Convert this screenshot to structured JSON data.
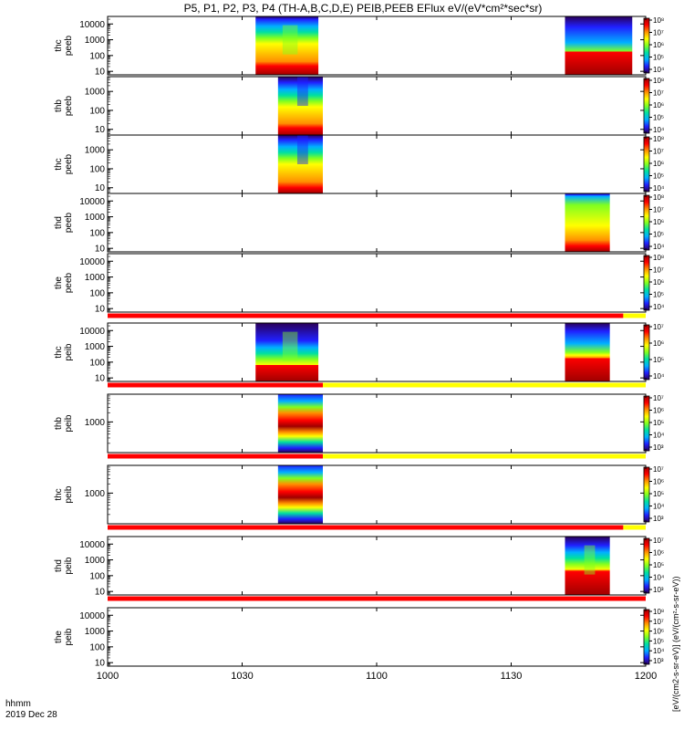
{
  "chart_data": {
    "type": "heatmap",
    "title": "P5, P1, P2, P3, P4 (TH-A,B,C,D,E) PEIB,PEEB EFlux eV/(eV*cm²*sec*sr)",
    "colorbar_label": "[eV/(cm2-s-sr-eV)] (eV/(cm²-s-sr-eV))",
    "colorscale": [
      "#2a0058",
      "#2020ff",
      "#00b0ff",
      "#00e0a0",
      "#80ff20",
      "#ffff00",
      "#ff9000",
      "#ff0000",
      "#a00000"
    ],
    "x_axis": {
      "ticks": [
        "1000",
        "1030",
        "1100",
        "1130",
        "1200"
      ],
      "range": [
        "10:00",
        "12:00"
      ],
      "label_line1": "hhmm",
      "label_line2": "2019 Dec 28"
    },
    "flag_colors": {
      "on": "#ff0000",
      "off": "#ffff00"
    },
    "panels": [
      {
        "probe": "thc",
        "dataset": "peeb",
        "y_scale": "log",
        "y_ticks": [
          "10",
          "100",
          "1000",
          "10000"
        ],
        "y_range": [
          6,
          30000
        ],
        "cbar_ticks": [
          "10⁴",
          "10⁵",
          "10⁶",
          "10⁷",
          "10⁸"
        ],
        "segments": [
          {
            "start": "10:33",
            "end": "10:47",
            "level_top": 0.05,
            "level_bottom": 0.85,
            "burst": "center"
          },
          {
            "start": "11:42",
            "end": "11:57",
            "level_top": 0.45,
            "level_bottom": 0.6,
            "burst": "flat"
          }
        ]
      },
      {
        "probe": "thb",
        "dataset": "peeb",
        "y_scale": "log",
        "y_ticks": [
          "10",
          "100",
          "1000"
        ],
        "y_range": [
          5,
          6000
        ],
        "cbar_ticks": [
          "10⁴",
          "10⁵",
          "10⁶",
          "10⁷",
          "10⁸"
        ],
        "segments": [
          {
            "start": "10:38",
            "end": "10:48",
            "level_top": 0.1,
            "level_bottom": 0.88,
            "burst": "top"
          }
        ]
      },
      {
        "probe": "thc",
        "dataset": "peeb",
        "y_scale": "log",
        "y_ticks": [
          "10",
          "100",
          "1000"
        ],
        "y_range": [
          5,
          6000
        ],
        "cbar_ticks": [
          "10⁴",
          "10⁵",
          "10⁶",
          "10⁷",
          "10⁸"
        ],
        "segments": [
          {
            "start": "10:38",
            "end": "10:48",
            "level_top": 0.08,
            "level_bottom": 0.9,
            "burst": "top"
          }
        ]
      },
      {
        "probe": "thd",
        "dataset": "peeb",
        "y_scale": "log",
        "y_ticks": [
          "10",
          "100",
          "1000",
          "10000"
        ],
        "y_range": [
          6,
          30000
        ],
        "cbar_ticks": [
          "10⁴",
          "10⁵",
          "10⁶",
          "10⁷",
          "10⁸"
        ],
        "segments": [
          {
            "start": "11:42",
            "end": "11:52",
            "level_top": 0.05,
            "level_bottom": 0.9,
            "burst": "flat"
          }
        ]
      },
      {
        "probe": "the",
        "dataset": "peeb",
        "y_scale": "log",
        "y_ticks": [
          "10",
          "100",
          "1000",
          "10000"
        ],
        "y_range": [
          6,
          30000
        ],
        "cbar_ticks": [
          "10⁴",
          "10⁵",
          "10⁶",
          "10⁷",
          "10⁸"
        ],
        "segments": [],
        "flag": [
          {
            "start": "10:00",
            "end": "11:55",
            "state": "on"
          },
          {
            "start": "11:55",
            "end": "12:00",
            "state": "off"
          }
        ]
      },
      {
        "probe": "thc",
        "dataset": "peib",
        "y_scale": "log",
        "y_ticks": [
          "10",
          "100",
          "1000",
          "10000"
        ],
        "y_range": [
          6,
          30000
        ],
        "cbar_ticks": [
          "10⁴",
          "10⁵",
          "10⁶",
          "10⁷"
        ],
        "segments": [
          {
            "start": "10:33",
            "end": "10:47",
            "level_top": 0.3,
            "level_bottom": 0.65,
            "burst": "center"
          },
          {
            "start": "11:42",
            "end": "11:52",
            "level_top": 0.35,
            "level_bottom": 0.45,
            "burst": "flat"
          }
        ],
        "flag": [
          {
            "start": "10:00",
            "end": "10:48",
            "state": "on"
          },
          {
            "start": "10:48",
            "end": "12:00",
            "state": "off"
          }
        ]
      },
      {
        "probe": "thb",
        "dataset": "peib",
        "y_scale": "log",
        "y_ticks": [
          "1000"
        ],
        "y_range": [
          100,
          8000
        ],
        "cbar_ticks": [
          "10³",
          "10⁴",
          "10⁵",
          "10⁶",
          "10⁷"
        ],
        "segments": [
          {
            "start": "10:38",
            "end": "10:48",
            "level_top": 0.2,
            "level_bottom": 0.2,
            "burst": "bands"
          }
        ],
        "flag": [
          {
            "start": "10:00",
            "end": "10:48",
            "state": "on"
          },
          {
            "start": "10:48",
            "end": "12:00",
            "state": "off"
          }
        ]
      },
      {
        "probe": "thc",
        "dataset": "peib",
        "y_scale": "log",
        "y_ticks": [
          "1000"
        ],
        "y_range": [
          100,
          8000
        ],
        "cbar_ticks": [
          "10³",
          "10⁴",
          "10⁵",
          "10⁶",
          "10⁷"
        ],
        "segments": [
          {
            "start": "10:38",
            "end": "10:48",
            "level_top": 0.2,
            "level_bottom": 0.2,
            "burst": "bands"
          }
        ],
        "flag": [
          {
            "start": "10:00",
            "end": "11:55",
            "state": "on"
          },
          {
            "start": "11:55",
            "end": "12:00",
            "state": "off"
          }
        ]
      },
      {
        "probe": "thd",
        "dataset": "peib",
        "y_scale": "log",
        "y_ticks": [
          "10",
          "100",
          "1000",
          "10000"
        ],
        "y_range": [
          6,
          30000
        ],
        "cbar_ticks": [
          "10³",
          "10⁴",
          "10⁵",
          "10⁶",
          "10⁷"
        ],
        "segments": [
          {
            "start": "11:42",
            "end": "11:52",
            "level_top": 0.15,
            "level_bottom": 0.6,
            "burst": "center"
          }
        ],
        "flag": [
          {
            "start": "10:00",
            "end": "12:00",
            "state": "on"
          }
        ]
      },
      {
        "probe": "the",
        "dataset": "peib",
        "y_scale": "log",
        "y_ticks": [
          "10",
          "100",
          "1000",
          "10000"
        ],
        "y_range": [
          6,
          30000
        ],
        "cbar_ticks": [
          "10³",
          "10⁴",
          "10⁵",
          "10⁶",
          "10⁷",
          "10⁸"
        ],
        "segments": []
      }
    ]
  }
}
